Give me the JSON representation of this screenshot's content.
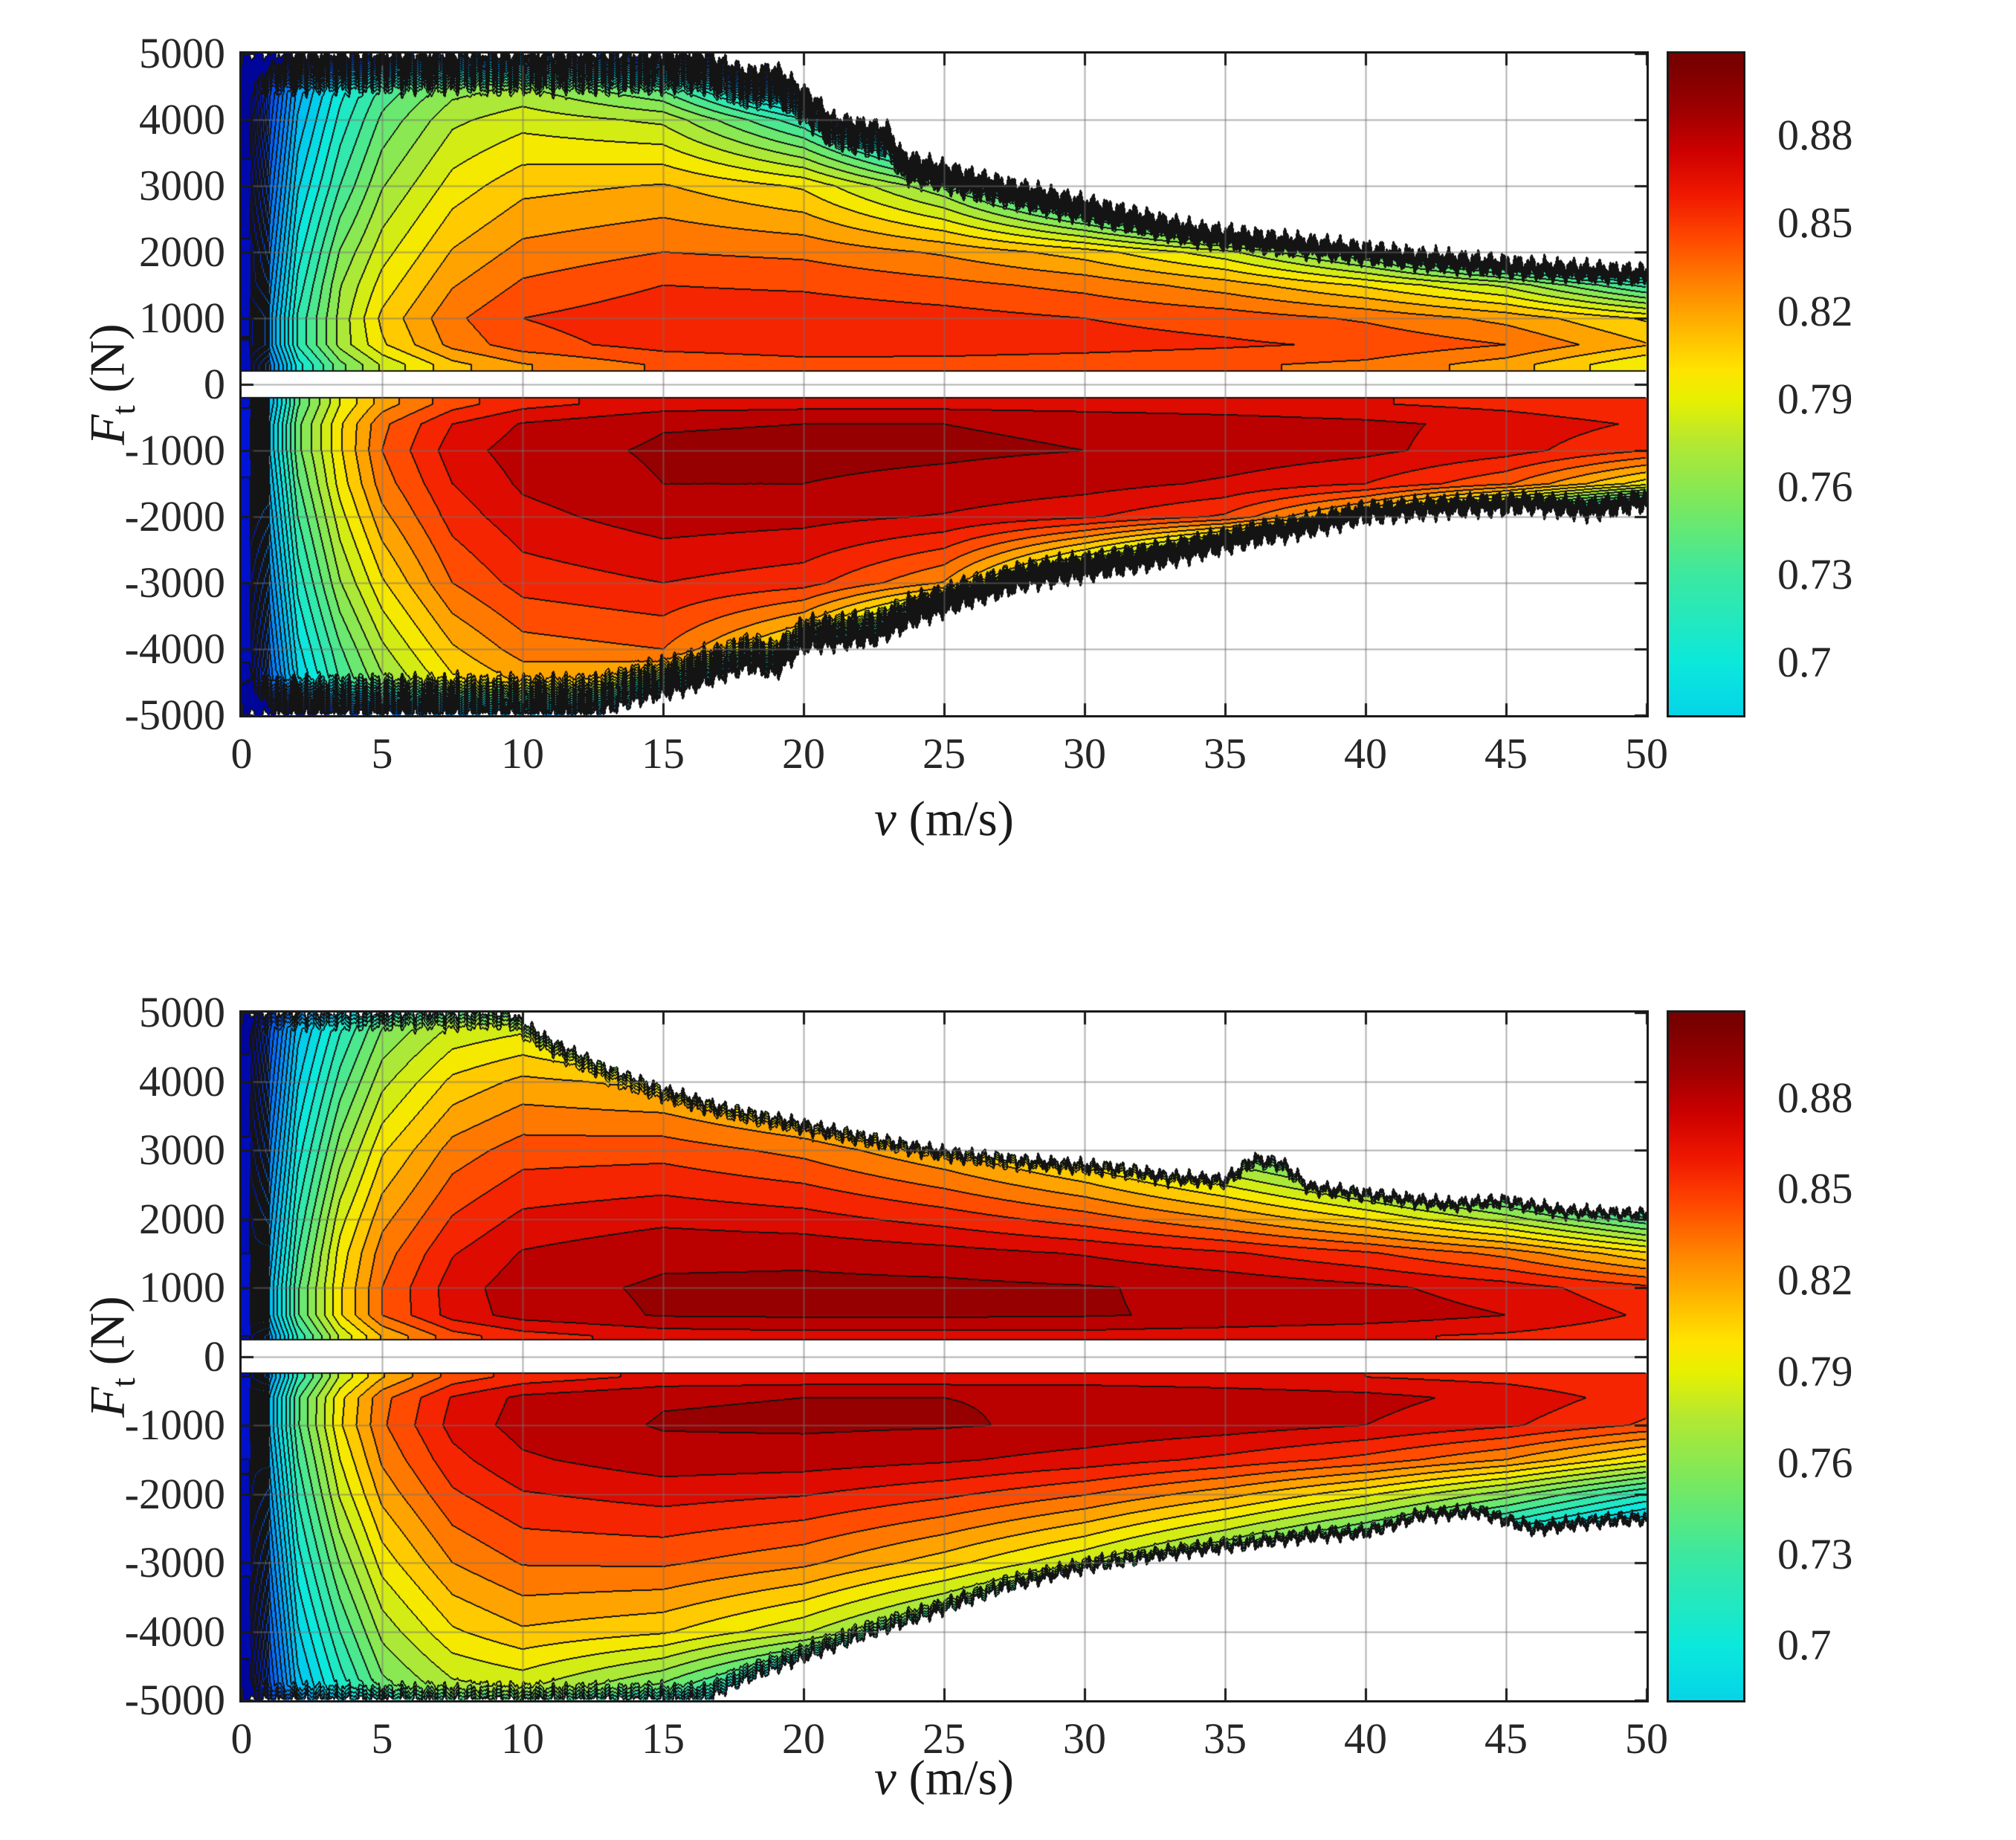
{
  "axes": {
    "xlim": [
      0,
      50
    ],
    "ylim": [
      -5000,
      5000
    ],
    "xticks": [
      0,
      5,
      10,
      15,
      20,
      25,
      30,
      35,
      40,
      45,
      50
    ],
    "xtick_labels": [
      "0",
      "5",
      "10",
      "15",
      "20",
      "25",
      "30",
      "35",
      "40",
      "45",
      "50"
    ],
    "yticks": [
      5000,
      4000,
      3000,
      2000,
      1000,
      0,
      -1000,
      -2000,
      -3000,
      -4000,
      -5000
    ],
    "ytick_labels": [
      "5000",
      "4000",
      "3000",
      "2000",
      "1000",
      "0",
      "-1000",
      "-2000",
      "-3000",
      "-4000",
      "-5000"
    ],
    "xlabel": {
      "sym": "v",
      "unit": " (m/s)"
    },
    "ylabel": {
      "sym": "F",
      "sub": "t",
      "unit": " (N)"
    }
  },
  "colorbar": {
    "ticks": [
      "0.88",
      "0.85",
      "0.82",
      "0.79",
      "0.76",
      "0.73",
      "0.7"
    ],
    "tick_values": [
      0.88,
      0.85,
      0.82,
      0.79,
      0.76,
      0.73,
      0.7
    ],
    "vmin": 0.682,
    "vmax": 0.908
  },
  "contour": {
    "level_min": 0.454,
    "level_step": 0.012,
    "level_max": 0.91
  },
  "colormap": {
    "stops": [
      [
        0.44,
        "#000080"
      ],
      [
        0.52,
        "#0018E8"
      ],
      [
        0.58,
        "#0050FF"
      ],
      [
        0.63,
        "#0090FF"
      ],
      [
        0.67,
        "#00C8F0"
      ],
      [
        0.7,
        "#0CE8DC"
      ],
      [
        0.73,
        "#3CE8A0"
      ],
      [
        0.755,
        "#7CE85C"
      ],
      [
        0.775,
        "#B4E832"
      ],
      [
        0.79,
        "#E8F000"
      ],
      [
        0.8,
        "#FFE400"
      ],
      [
        0.815,
        "#FFB400"
      ],
      [
        0.83,
        "#FF8000"
      ],
      [
        0.845,
        "#FF4800"
      ],
      [
        0.86,
        "#F01800"
      ],
      [
        0.875,
        "#CC0000"
      ],
      [
        0.888,
        "#A00000"
      ],
      [
        0.905,
        "#780000"
      ]
    ]
  },
  "chart_data": [
    {
      "type": "contour",
      "position": "top",
      "xlabel": "v (m/s)",
      "ylabel": "Ft (N)",
      "force_gap": 200,
      "v": [
        0.3,
        1,
        2,
        3.5,
        5,
        7.5,
        10,
        15,
        20,
        25,
        30,
        35,
        40,
        45,
        50
      ],
      "F_pos": [
        300,
        600,
        1000,
        1500,
        2000,
        3000,
        4000,
        5000
      ],
      "values_pos": [
        [
          0.48,
          0.62,
          0.7,
          0.75,
          0.78,
          0.81,
          0.825,
          0.84,
          0.845,
          0.845,
          0.843,
          0.84,
          0.835,
          0.82,
          0.79
        ],
        [
          0.49,
          0.64,
          0.72,
          0.77,
          0.8,
          0.83,
          0.845,
          0.855,
          0.858,
          0.857,
          0.855,
          0.852,
          0.848,
          0.838,
          0.815
        ],
        [
          0.49,
          0.64,
          0.72,
          0.77,
          0.805,
          0.835,
          0.85,
          0.858,
          0.858,
          0.855,
          0.85,
          0.845,
          0.836,
          0.822,
          0.8
        ],
        [
          0.48,
          0.63,
          0.71,
          0.765,
          0.795,
          0.825,
          0.84,
          0.85,
          0.848,
          0.842,
          0.834,
          0.82,
          0.8,
          0.775,
          0.725
        ],
        [
          0.48,
          0.62,
          0.7,
          0.755,
          0.785,
          0.815,
          0.83,
          0.838,
          0.835,
          0.824,
          0.808,
          0.782,
          0.74,
          0.68,
          0.6
        ],
        [
          0.47,
          0.6,
          0.68,
          0.73,
          0.765,
          0.795,
          0.81,
          0.815,
          0.8,
          0.755,
          0.68,
          0.6,
          0.52,
          0.47,
          0.45
        ],
        [
          0.46,
          0.58,
          0.66,
          0.71,
          0.745,
          0.775,
          0.785,
          0.775,
          0.72,
          0.62,
          0.52,
          0.46,
          0.44,
          0.44,
          0.44
        ],
        [
          0.45,
          0.56,
          0.64,
          0.69,
          0.72,
          0.745,
          0.75,
          0.7,
          0.58,
          0.48,
          0.44,
          0.44,
          0.44,
          0.44,
          0.44
        ]
      ],
      "F_neg": [
        -300,
        -600,
        -1000,
        -1500,
        -2000,
        -3000,
        -4000,
        -5000
      ],
      "values_neg": [
        [
          0.5,
          0.66,
          0.74,
          0.79,
          0.82,
          0.845,
          0.858,
          0.868,
          0.87,
          0.87,
          0.868,
          0.866,
          0.863,
          0.858,
          0.85
        ],
        [
          0.51,
          0.67,
          0.75,
          0.8,
          0.835,
          0.862,
          0.875,
          0.885,
          0.886,
          0.886,
          0.884,
          0.881,
          0.877,
          0.87,
          0.86
        ],
        [
          0.51,
          0.67,
          0.75,
          0.8,
          0.838,
          0.868,
          0.88,
          0.888,
          0.889,
          0.888,
          0.886,
          0.882,
          0.877,
          0.867,
          0.85
        ],
        [
          0.5,
          0.66,
          0.74,
          0.795,
          0.832,
          0.862,
          0.876,
          0.886,
          0.886,
          0.883,
          0.879,
          0.872,
          0.862,
          0.84,
          0.795
        ],
        [
          0.5,
          0.65,
          0.73,
          0.785,
          0.822,
          0.855,
          0.87,
          0.88,
          0.878,
          0.873,
          0.864,
          0.848,
          0.8,
          0.72,
          0.64
        ],
        [
          0.49,
          0.63,
          0.71,
          0.765,
          0.8,
          0.838,
          0.855,
          0.862,
          0.855,
          0.825,
          0.74,
          0.64,
          0.55,
          0.5,
          0.47
        ],
        [
          0.48,
          0.61,
          0.69,
          0.74,
          0.775,
          0.812,
          0.832,
          0.838,
          0.79,
          0.68,
          0.56,
          0.48,
          0.45,
          0.44,
          0.44
        ],
        [
          0.47,
          0.59,
          0.67,
          0.72,
          0.75,
          0.785,
          0.8,
          0.775,
          0.65,
          0.52,
          0.45,
          0.44,
          0.44,
          0.44,
          0.44
        ]
      ],
      "region_boundary_pos": [
        [
          0,
          5000
        ],
        [
          16.5,
          5000
        ],
        [
          18,
          4750
        ],
        [
          19,
          4800
        ],
        [
          20.5,
          4300
        ],
        [
          21,
          4050
        ],
        [
          23,
          3900
        ],
        [
          23.5,
          3500
        ],
        [
          26,
          3200
        ],
        [
          28,
          3000
        ],
        [
          31,
          2700
        ],
        [
          34,
          2400
        ],
        [
          38,
          2200
        ],
        [
          42,
          2000
        ],
        [
          46,
          1850
        ],
        [
          50,
          1750
        ]
      ],
      "region_boundary_neg": [
        [
          0,
          -5000
        ],
        [
          12.5,
          -5000
        ],
        [
          14,
          -4800
        ],
        [
          16,
          -4600
        ],
        [
          18,
          -4300
        ],
        [
          19,
          -4400
        ],
        [
          20,
          -4000
        ],
        [
          22.5,
          -3900
        ],
        [
          24,
          -3600
        ],
        [
          26,
          -3300
        ],
        [
          28,
          -3050
        ],
        [
          31,
          -2850
        ],
        [
          33,
          -2700
        ],
        [
          36,
          -2400
        ],
        [
          38,
          -2250
        ],
        [
          40,
          -2050
        ],
        [
          43,
          -1950
        ],
        [
          46,
          -1900
        ],
        [
          48,
          -2000
        ],
        [
          50,
          -1850
        ]
      ]
    },
    {
      "type": "contour",
      "position": "bottom",
      "xlabel": "v (m/s)",
      "ylabel": "Ft (N)",
      "force_gap": 240,
      "v": [
        0.3,
        1,
        2,
        3.5,
        5,
        7.5,
        10,
        15,
        20,
        25,
        30,
        35,
        40,
        45,
        50
      ],
      "F_pos": [
        300,
        600,
        1000,
        1500,
        2000,
        3000,
        4000,
        5000
      ],
      "values_pos": [
        [
          0.49,
          0.64,
          0.72,
          0.78,
          0.815,
          0.845,
          0.857,
          0.867,
          0.869,
          0.869,
          0.869,
          0.867,
          0.864,
          0.86,
          0.852
        ],
        [
          0.5,
          0.66,
          0.74,
          0.8,
          0.838,
          0.867,
          0.879,
          0.887,
          0.888,
          0.888,
          0.887,
          0.884,
          0.881,
          0.874,
          0.86
        ],
        [
          0.5,
          0.66,
          0.74,
          0.8,
          0.838,
          0.868,
          0.881,
          0.888,
          0.889,
          0.889,
          0.887,
          0.883,
          0.877,
          0.868,
          0.853
        ],
        [
          0.49,
          0.65,
          0.73,
          0.795,
          0.832,
          0.861,
          0.875,
          0.883,
          0.883,
          0.879,
          0.873,
          0.864,
          0.852,
          0.834,
          0.804
        ],
        [
          0.49,
          0.64,
          0.72,
          0.785,
          0.822,
          0.851,
          0.865,
          0.871,
          0.867,
          0.857,
          0.844,
          0.826,
          0.802,
          0.772,
          0.732
        ],
        [
          0.48,
          0.62,
          0.7,
          0.76,
          0.8,
          0.831,
          0.844,
          0.845,
          0.834,
          0.814,
          0.788,
          0.752,
          0.712,
          0.668,
          0.62
        ],
        [
          0.47,
          0.6,
          0.68,
          0.735,
          0.774,
          0.805,
          0.817,
          0.81,
          0.788,
          0.752,
          0.706,
          0.655,
          0.6,
          0.55,
          0.5
        ],
        [
          0.46,
          0.58,
          0.66,
          0.71,
          0.748,
          0.773,
          0.778,
          0.742,
          0.68,
          0.6,
          0.52,
          0.47,
          0.44,
          0.44,
          0.44
        ]
      ],
      "F_neg": [
        -300,
        -600,
        -1000,
        -1500,
        -2000,
        -3000,
        -4000,
        -5000
      ],
      "values_neg": [
        [
          0.49,
          0.64,
          0.72,
          0.78,
          0.813,
          0.843,
          0.855,
          0.865,
          0.867,
          0.867,
          0.867,
          0.865,
          0.862,
          0.858,
          0.85
        ],
        [
          0.5,
          0.66,
          0.74,
          0.798,
          0.834,
          0.863,
          0.877,
          0.885,
          0.886,
          0.886,
          0.885,
          0.882,
          0.878,
          0.87,
          0.856
        ],
        [
          0.5,
          0.66,
          0.74,
          0.8,
          0.836,
          0.866,
          0.879,
          0.887,
          0.888,
          0.887,
          0.884,
          0.88,
          0.874,
          0.864,
          0.848
        ],
        [
          0.49,
          0.65,
          0.73,
          0.79,
          0.828,
          0.858,
          0.872,
          0.881,
          0.88,
          0.876,
          0.869,
          0.859,
          0.846,
          0.826,
          0.793
        ],
        [
          0.49,
          0.64,
          0.72,
          0.78,
          0.818,
          0.848,
          0.861,
          0.867,
          0.863,
          0.853,
          0.839,
          0.819,
          0.793,
          0.76,
          0.718
        ],
        [
          0.48,
          0.62,
          0.7,
          0.755,
          0.795,
          0.826,
          0.839,
          0.84,
          0.829,
          0.807,
          0.779,
          0.741,
          0.7,
          0.654,
          0.605
        ],
        [
          0.47,
          0.6,
          0.68,
          0.73,
          0.77,
          0.8,
          0.812,
          0.804,
          0.78,
          0.742,
          0.694,
          0.64,
          0.585,
          0.535,
          0.49
        ],
        [
          0.46,
          0.58,
          0.66,
          0.705,
          0.744,
          0.768,
          0.773,
          0.737,
          0.672,
          0.59,
          0.51,
          0.46,
          0.44,
          0.44,
          0.44
        ]
      ],
      "region_boundary_pos": [
        [
          0,
          5000
        ],
        [
          9.5,
          5000
        ],
        [
          11,
          4600
        ],
        [
          13,
          4200
        ],
        [
          15,
          3900
        ],
        [
          17,
          3650
        ],
        [
          20,
          3400
        ],
        [
          23,
          3150
        ],
        [
          25,
          3000
        ],
        [
          28,
          2870
        ],
        [
          31,
          2780
        ],
        [
          33,
          2650
        ],
        [
          35,
          2600
        ],
        [
          36,
          2900
        ],
        [
          37,
          2850
        ],
        [
          38,
          2500
        ],
        [
          40,
          2400
        ],
        [
          43,
          2250
        ],
        [
          45,
          2300
        ],
        [
          47,
          2150
        ],
        [
          50,
          2100
        ]
      ],
      "region_boundary_neg": [
        [
          0,
          -5000
        ],
        [
          16.5,
          -5000
        ],
        [
          18,
          -4700
        ],
        [
          20,
          -4400
        ],
        [
          22,
          -4100
        ],
        [
          25,
          -3700
        ],
        [
          27,
          -3400
        ],
        [
          30,
          -3100
        ],
        [
          33,
          -2900
        ],
        [
          35,
          -2800
        ],
        [
          38,
          -2650
        ],
        [
          40,
          -2600
        ],
        [
          42,
          -2350
        ],
        [
          44,
          -2300
        ],
        [
          46,
          -2550
        ],
        [
          48,
          -2450
        ],
        [
          50,
          -2400
        ]
      ]
    }
  ]
}
